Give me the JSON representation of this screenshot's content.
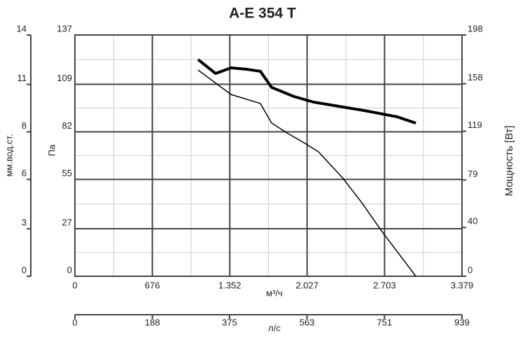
{
  "chart_data": {
    "type": "line",
    "title": "A-E 354 T",
    "x_label": "м³/ч",
    "y_label": "Па",
    "y2_label": "Мощность [Вт]",
    "xlim": [
      0,
      3379
    ],
    "xticks": [
      0,
      676,
      {
        "value": 1352,
        "label": "1.352"
      },
      {
        "value": 2027,
        "label": "2.027"
      },
      {
        "value": 2703,
        "label": "2.703"
      },
      {
        "value": 3379,
        "label": "3.379"
      }
    ],
    "ylim": [
      0,
      137
    ],
    "yticks": [
      0,
      27,
      55,
      82,
      109,
      137
    ],
    "y2lim": [
      0,
      198
    ],
    "y2ticks": [
      0,
      40,
      79,
      119,
      158,
      198
    ],
    "grid": true,
    "mm_axis": {
      "label": "мм.вод.ст.",
      "ylim": [
        0,
        13.97
      ],
      "ticks": [
        0,
        {
          "value": 2.75,
          "label": "3"
        },
        {
          "value": 5.61,
          "label": "6"
        },
        {
          "value": 8.36,
          "label": "8"
        },
        {
          "value": 11.11,
          "label": "11"
        },
        {
          "value": 13.97,
          "label": "14"
        }
      ]
    },
    "ls_axis": {
      "label": "л/с",
      "xlim": [
        0,
        939
      ],
      "ticks": [
        0,
        188,
        375,
        563,
        751,
        939
      ]
    },
    "series": [
      {
        "name": "pressure",
        "color": "#000000",
        "width": 1.5,
        "x": [
          1075,
          1363,
          1619,
          1717,
          1851,
          2010,
          2126,
          2340,
          2505,
          2676,
          2976
        ],
        "values": [
          117.1,
          103.2,
          98.1,
          87,
          81.4,
          75.4,
          70.7,
          55.6,
          41.7,
          25.8,
          0
        ]
      },
      {
        "name": "power",
        "color": "#000000",
        "width": 4,
        "axis": "y2",
        "x": [
          1075,
          1228,
          1363,
          1497,
          1619,
          1717,
          1912,
          2084,
          2340,
          2524,
          2811,
          2976
        ],
        "values": [
          177.9,
          166.4,
          171.0,
          169.9,
          168.2,
          155.0,
          147.5,
          142.9,
          138.9,
          136.0,
          130.9,
          125.7
        ]
      }
    ]
  }
}
